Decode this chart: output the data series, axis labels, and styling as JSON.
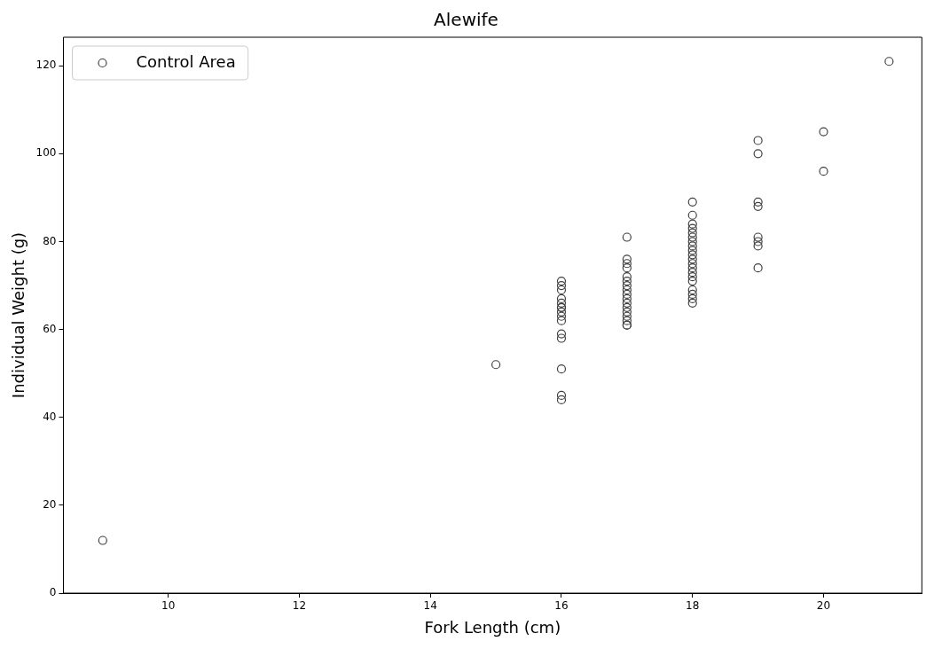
{
  "chart_data": {
    "type": "scatter",
    "title": "Alewife",
    "xlabel": "Fork Length (cm)",
    "ylabel": "Individual Weight (g)",
    "series": [
      {
        "name": "Control Area",
        "color": "#404040",
        "x": [
          9,
          15,
          16,
          16,
          16,
          16,
          16,
          16,
          16,
          16,
          16,
          16,
          16,
          16,
          16,
          16,
          16,
          17,
          17,
          17,
          17,
          17,
          17,
          17,
          17,
          17,
          17,
          17,
          17,
          17,
          17,
          17,
          17,
          17,
          18,
          18,
          18,
          18,
          18,
          18,
          18,
          18,
          18,
          18,
          18,
          18,
          18,
          18,
          18,
          18,
          18,
          18,
          18,
          18,
          19,
          19,
          19,
          19,
          19,
          19,
          19,
          19,
          20,
          20,
          21
        ],
        "values": [
          12,
          52,
          71,
          70,
          69,
          67,
          66,
          65,
          65,
          64,
          63,
          62,
          59,
          58,
          51,
          45,
          44,
          81,
          76,
          75,
          74,
          72,
          71,
          70,
          69,
          68,
          67,
          66,
          65,
          64,
          63,
          62,
          61,
          61,
          89,
          86,
          84,
          83,
          82,
          81,
          80,
          79,
          78,
          77,
          76,
          75,
          74,
          73,
          72,
          71,
          69,
          68,
          67,
          66,
          103,
          100,
          89,
          88,
          81,
          80,
          79,
          74,
          105,
          96,
          121
        ]
      }
    ],
    "xlim": [
      8.4,
      21.5
    ],
    "ylim": [
      0,
      126.5
    ],
    "xticks": [
      10,
      12,
      14,
      16,
      18,
      20
    ],
    "yticks": [
      0,
      20,
      40,
      60,
      80,
      100,
      120
    ],
    "legend": "top left",
    "marker": "circle",
    "grid": false
  }
}
